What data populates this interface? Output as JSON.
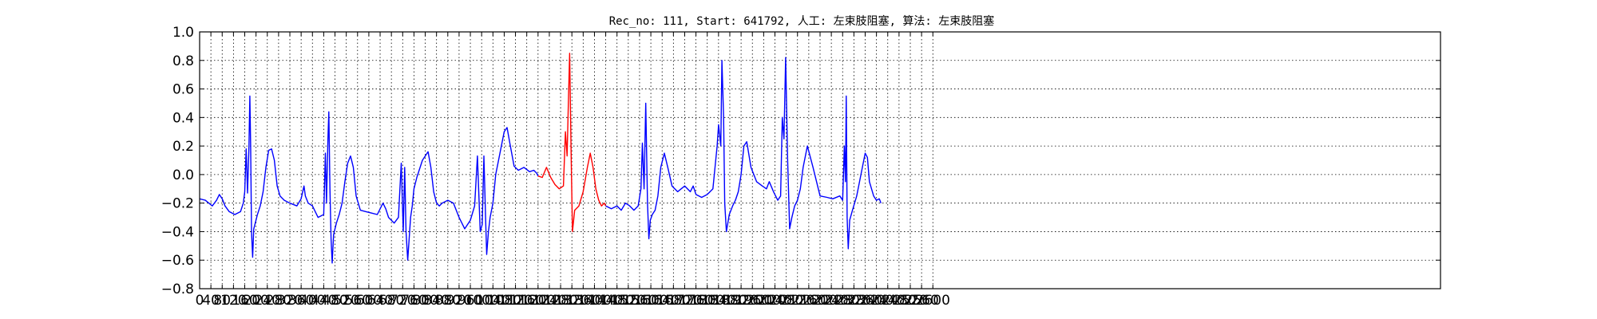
{
  "chart_data": {
    "type": "line",
    "title": "Rec_no: 111, Start: 641792, 人工: 左束肢阻塞, 算法: 左束肢阻塞",
    "xlabel": "",
    "ylabel": "",
    "xlim": [
      0,
      4400
    ],
    "ylim": [
      -0.8,
      1.0
    ],
    "grid": true,
    "x_ticks": [
      0,
      40,
      80,
      120,
      160,
      200,
      240,
      280,
      320,
      360,
      400,
      440,
      480,
      520,
      560,
      600,
      640,
      680,
      720,
      760,
      800,
      840,
      880,
      920,
      960,
      1000,
      1040,
      1080,
      1120,
      1160,
      1200,
      1240,
      1280,
      1320,
      1360,
      1400,
      1440,
      1480,
      1520,
      1560,
      1600,
      1640,
      1680,
      1720,
      1760,
      1800,
      1840,
      1880,
      1920,
      1960,
      2000,
      2040,
      2080,
      2120,
      2160,
      2200,
      2240,
      2280,
      2320,
      2360,
      2400,
      2440,
      2480,
      2520,
      2560,
      2600
    ],
    "y_ticks": [
      -0.8,
      -0.6,
      -0.4,
      -0.2,
      0.0,
      0.2,
      0.4,
      0.6,
      0.8,
      1.0
    ],
    "y_tick_labels": [
      "−0.8",
      "−0.6",
      "−0.4",
      "−0.2",
      "0.0",
      "0.2",
      "0.4",
      "0.6",
      "0.8",
      "1.0"
    ],
    "series": [
      {
        "color": "#0000ff",
        "x": [
          0,
          20,
          45,
          60,
          70,
          80,
          90,
          105,
          125,
          145,
          155,
          160,
          165,
          170,
          175,
          178,
          181,
          184,
          188,
          192,
          196,
          200,
          205,
          215,
          225,
          235,
          245,
          255,
          265,
          275,
          285,
          300,
          320,
          345,
          360,
          370,
          375,
          385,
          400,
          420,
          440,
          446,
          450,
          455,
          458,
          462,
          466,
          470,
          475,
          485,
          495,
          505,
          515,
          525,
          535,
          545,
          555,
          570,
          590,
          610,
          630,
          650,
          660,
          670,
          690,
          705,
          715,
          722,
          727,
          732,
          738,
          743,
          748,
          754,
          760,
          770,
          790,
          810,
          820,
          830,
          840,
          850,
          860,
          880,
          900,
          920,
          940,
          960,
          975,
          985,
          995,
          1002,
          1008,
          1014,
          1018,
          1024,
          1030,
          1040,
          1050,
          1065,
          1080,
          1090,
          1100,
          1115,
          1130,
          1150,
          1170,
          1185,
          1195,
          1200
        ],
        "y": [
          -0.17,
          -0.18,
          -0.22,
          -0.18,
          -0.14,
          -0.17,
          -0.22,
          -0.26,
          -0.28,
          -0.26,
          -0.2,
          -0.12,
          0.18,
          -0.13,
          0.2,
          0.55,
          0.2,
          -0.4,
          -0.58,
          -0.38,
          -0.35,
          -0.32,
          -0.28,
          -0.22,
          -0.12,
          0.05,
          0.17,
          0.18,
          0.1,
          -0.08,
          -0.15,
          -0.18,
          -0.2,
          -0.22,
          -0.17,
          -0.08,
          -0.15,
          -0.2,
          -0.22,
          -0.3,
          -0.28,
          0.15,
          -0.2,
          0.25,
          0.44,
          -0.1,
          -0.45,
          -0.62,
          -0.42,
          -0.34,
          -0.28,
          -0.2,
          -0.05,
          0.08,
          0.13,
          0.05,
          -0.15,
          -0.25,
          -0.26,
          -0.27,
          -0.28,
          -0.2,
          -0.24,
          -0.3,
          -0.34,
          -0.3,
          0.08,
          -0.4,
          0.05,
          -0.4,
          -0.6,
          -0.45,
          -0.3,
          -0.22,
          -0.1,
          -0.02,
          0.1,
          0.16,
          0.05,
          -0.12,
          -0.2,
          -0.22,
          -0.2,
          -0.18,
          -0.2,
          -0.3,
          -0.38,
          -0.32,
          -0.22,
          0.13,
          -0.4,
          -0.35,
          0.13,
          -0.3,
          -0.56,
          -0.4,
          -0.3,
          -0.2,
          0.0,
          0.15,
          0.3,
          0.33,
          0.22,
          0.06,
          0.03,
          0.05,
          0.02,
          0.03,
          0.01,
          -0.01
        ]
      },
      {
        "color": "#ff0000",
        "x": [
          1200,
          1215,
          1230,
          1245,
          1260,
          1275,
          1290,
          1297,
          1303,
          1308,
          1312,
          1317,
          1322,
          1330,
          1345,
          1360,
          1375,
          1385,
          1395,
          1405,
          1415,
          1425,
          1435,
          1440
        ],
        "y": [
          -0.01,
          -0.02,
          0.05,
          -0.02,
          -0.07,
          -0.1,
          -0.08,
          0.3,
          0.13,
          0.55,
          0.85,
          0.2,
          -0.4,
          -0.25,
          -0.22,
          -0.12,
          0.05,
          0.15,
          0.05,
          -0.1,
          -0.18,
          -0.22,
          -0.2,
          -0.22
        ]
      },
      {
        "color": "#0000ff",
        "x": [
          1440,
          1460,
          1480,
          1495,
          1510,
          1525,
          1540,
          1555,
          1565,
          1570,
          1576,
          1582,
          1588,
          1593,
          1598,
          1605,
          1615,
          1625,
          1635,
          1648,
          1660,
          1675,
          1695,
          1720,
          1740,
          1750,
          1760,
          1780,
          1800,
          1820,
          1835,
          1840,
          1848,
          1852,
          1858,
          1862,
          1868,
          1878,
          1890,
          1900,
          1910,
          1920,
          1930,
          1940,
          1955,
          1975,
          1995,
          2010,
          2020,
          2035,
          2050,
          2060,
          2066,
          2072,
          2078,
          2085,
          2092,
          2100,
          2110,
          2120,
          2130,
          2140,
          2155,
          2175,
          2200,
          2225,
          2245,
          2270,
          2280,
          2286,
          2290,
          2293,
          2296,
          2300,
          2305,
          2315,
          2330,
          2345,
          2360,
          2368,
          2375,
          2390,
          2400,
          2410,
          2416
        ],
        "y": [
          -0.22,
          -0.24,
          -0.22,
          -0.25,
          -0.2,
          -0.22,
          -0.25,
          -0.22,
          -0.1,
          0.22,
          -0.1,
          0.5,
          -0.2,
          -0.45,
          -0.32,
          -0.28,
          -0.25,
          -0.15,
          0.05,
          0.15,
          0.05,
          -0.08,
          -0.12,
          -0.08,
          -0.12,
          -0.08,
          -0.14,
          -0.16,
          -0.14,
          -0.1,
          0.2,
          0.35,
          0.2,
          0.8,
          0.4,
          -0.2,
          -0.4,
          -0.28,
          -0.22,
          -0.18,
          -0.12,
          0.0,
          0.2,
          0.23,
          0.05,
          -0.05,
          -0.08,
          -0.1,
          -0.05,
          -0.12,
          -0.18,
          -0.15,
          0.4,
          0.25,
          0.82,
          0.1,
          -0.38,
          -0.3,
          -0.22,
          -0.18,
          -0.1,
          0.05,
          0.2,
          0.05,
          -0.15,
          -0.16,
          -0.17,
          -0.15,
          -0.18,
          0.2,
          -0.05,
          0.55,
          -0.3,
          -0.52,
          -0.32,
          -0.25,
          -0.15,
          0.0,
          0.15,
          0.12,
          -0.05,
          -0.15,
          -0.18,
          -0.17,
          -0.2
        ]
      }
    ]
  }
}
